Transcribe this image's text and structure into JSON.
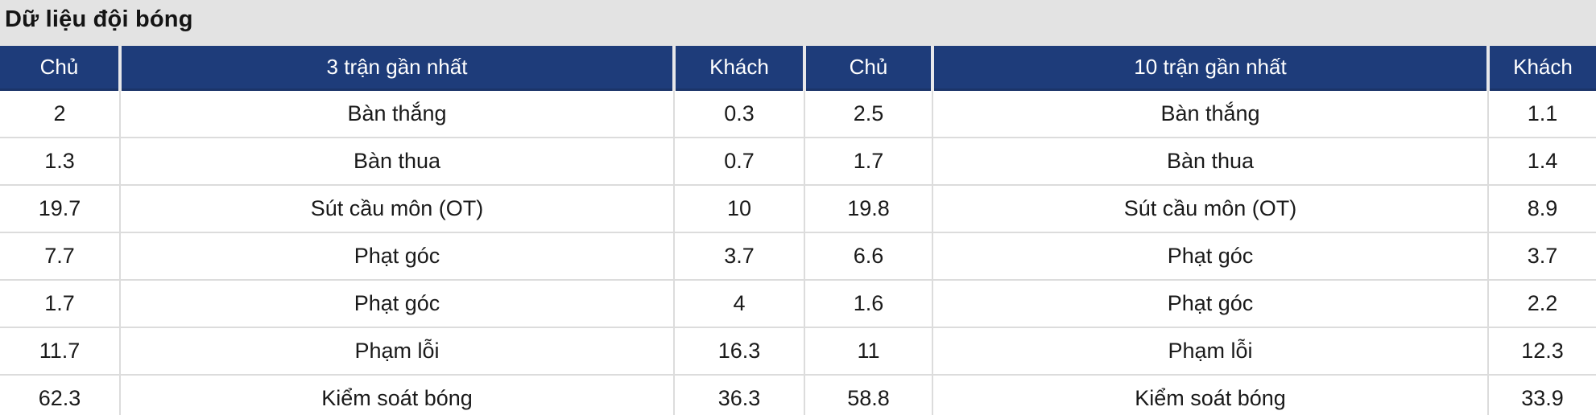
{
  "title": "Dữ liệu đội bóng",
  "table": {
    "headers": [
      "Chủ",
      "3 trận gần nhất",
      "Khách",
      "Chủ",
      "10 trận gần nhất",
      "Khách"
    ],
    "rows": [
      [
        "2",
        "Bàn thắng",
        "0.3",
        "2.5",
        "Bàn thắng",
        "1.1"
      ],
      [
        "1.3",
        "Bàn thua",
        "0.7",
        "1.7",
        "Bàn thua",
        "1.4"
      ],
      [
        "19.7",
        "Sút cầu môn (OT)",
        "10",
        "19.8",
        "Sút cầu môn (OT)",
        "8.9"
      ],
      [
        "7.7",
        "Phạt góc",
        "3.7",
        "6.6",
        "Phạt góc",
        "3.7"
      ],
      [
        "1.7",
        "Phạt góc",
        "4",
        "1.6",
        "Phạt góc",
        "2.2"
      ],
      [
        "11.7",
        "Phạm lỗi",
        "16.3",
        "11",
        "Phạm lỗi",
        "12.3"
      ],
      [
        "62.3",
        "Kiểm soát bóng",
        "36.3",
        "58.8",
        "Kiểm soát bóng",
        "33.9"
      ]
    ]
  },
  "colors": {
    "header_bg": "#1e3c7a",
    "header_text": "#ffffff",
    "header_divider": "#e8e8ea",
    "header_bottom_line": "#1b3469",
    "title_bar_bg": "#e3e3e3",
    "grid_line": "#dcdcdc",
    "body_text": "#1a1a1a"
  }
}
